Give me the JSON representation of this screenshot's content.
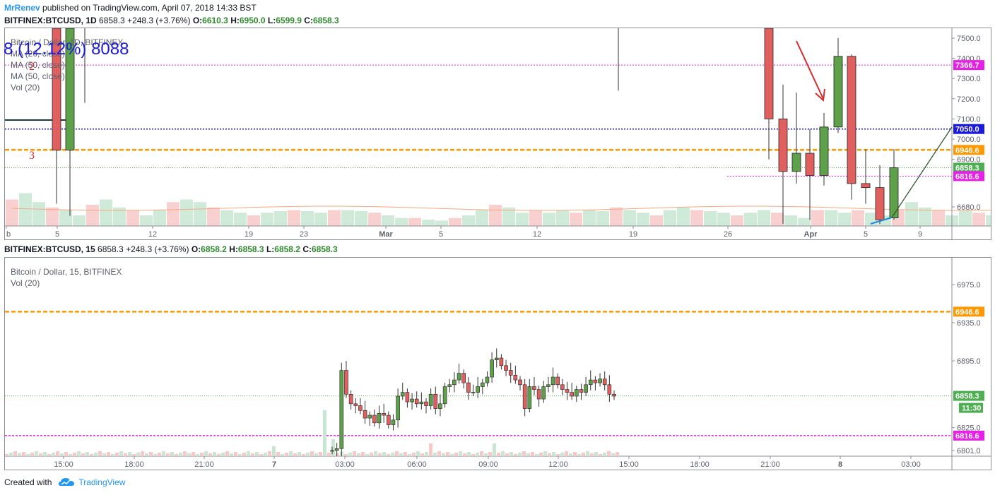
{
  "header": {
    "author": "MrRenev",
    "published": "published on TradingView.com, April 07, 2018 14:33 BST"
  },
  "top_chart": {
    "symbol_line": {
      "symbol": "BITFINEX:BTCUSD, 1D",
      "last": "6858.3",
      "change": "+248.3 (+3.76%)",
      "o": "O:",
      "ov": "6610.3",
      "h": "H:",
      "hv": "6950.0",
      "l": "L:",
      "lv": "6599.9",
      "c": "C:",
      "cv": "6858.3"
    },
    "legend": [
      "Bitcoin / Dollar, 1D, BITFINEX",
      "MA (20, close)",
      "MA (50, close)",
      "MA (50, close)",
      "Vol (20)"
    ],
    "overlay_text": "8 (12.12%) 8088",
    "annotation_2": "2",
    "annotation_3": "3"
  },
  "bottom_chart": {
    "symbol_line": {
      "symbol": "BITFINEX:BTCUSD, 15",
      "last": "6858.3",
      "change": "+248.3 (+3.76%)",
      "o": "O:",
      "ov": "6858.2",
      "h": "H:",
      "hv": "6858.3",
      "l": "L:",
      "lv": "6858.2",
      "c": "C:",
      "cv": "6858.3"
    },
    "legend": [
      "Bitcoin / Dollar, 15, BITFINEX",
      "Vol (20)"
    ]
  },
  "footer": {
    "created_with": "Created with",
    "brand": "TradingView"
  },
  "colors": {
    "up": "#6ba583",
    "up_fill": "#4caf50",
    "down": "#e06666",
    "orange": "#ff9800",
    "magenta": "#e91ee9",
    "blue": "#1a1adb",
    "green_line": "#4caf50",
    "axis": "#8a8e99"
  },
  "chart_data": [
    {
      "type": "candlestick",
      "title": "Bitcoin / Dollar, 1D, BITFINEX",
      "ylim": [
        6600,
        7550
      ],
      "y_ticks": [
        7500.0,
        7400.0,
        7300.0,
        7200.0,
        7100.0,
        7000.0,
        6900.0,
        6680.0
      ],
      "y_tick_labels": [
        "7500.0",
        "7400.0",
        "7300.0",
        "7200.0",
        "7100.0",
        "7000.0",
        "6900.0",
        "6680.0"
      ],
      "x_tick_labels": [
        "b",
        "5",
        "12",
        "19",
        "23",
        "Mar",
        "5",
        "12",
        "19",
        "26",
        "Apr",
        "5",
        "9"
      ],
      "price_labels": [
        {
          "value": 7366.7,
          "text": "7366.7",
          "color": "#e91ee9"
        },
        {
          "value": 7050.0,
          "text": "7050.0",
          "color": "#1a1adb"
        },
        {
          "value": 6946.6,
          "text": "6946.6",
          "color": "#ff9800"
        },
        {
          "value": 6858.3,
          "text": "6858.3",
          "color": "#4caf50"
        },
        {
          "value": 6816.6,
          "text": "6816.6",
          "color": "#e91ee9"
        }
      ],
      "candles": [
        {
          "date": "Feb 04",
          "o": 7600,
          "h": 7600,
          "l": 6680,
          "c": 6946,
          "dir": "down"
        },
        {
          "date": "Feb 05",
          "o": 6946,
          "h": 7600,
          "l": 6620,
          "c": 7600,
          "dir": "up"
        },
        {
          "date": "Feb 06",
          "o": 7300,
          "h": 7550,
          "l": 7180,
          "c": 7300,
          "dir": "down"
        },
        {
          "date": "Feb 18",
          "o": 7260,
          "h": 7550,
          "l": 7240,
          "c": 7260,
          "dir": "down"
        },
        {
          "date": "Mar 29",
          "o": 7550,
          "h": 7550,
          "l": 6900,
          "c": 7100,
          "dir": "down"
        },
        {
          "date": "Mar 30",
          "o": 7100,
          "h": 7270,
          "l": 6580,
          "c": 6840,
          "dir": "down"
        },
        {
          "date": "Mar 31",
          "o": 6840,
          "h": 7230,
          "l": 6780,
          "c": 6930,
          "dir": "up"
        },
        {
          "date": "Apr 01",
          "o": 6930,
          "h": 7050,
          "l": 6600,
          "c": 6820,
          "dir": "down"
        },
        {
          "date": "Apr 02",
          "o": 6820,
          "h": 7130,
          "l": 6770,
          "c": 7060,
          "dir": "up"
        },
        {
          "date": "Apr 03",
          "o": 7060,
          "h": 7500,
          "l": 7030,
          "c": 7410,
          "dir": "up"
        },
        {
          "date": "Apr 04",
          "o": 7410,
          "h": 7420,
          "l": 6700,
          "c": 6780,
          "dir": "down"
        },
        {
          "date": "Apr 05",
          "o": 6780,
          "h": 6950,
          "l": 6680,
          "c": 6760,
          "dir": "down"
        },
        {
          "date": "Apr 06",
          "o": 6760,
          "h": 6870,
          "l": 6580,
          "c": 6600,
          "dir": "down"
        },
        {
          "date": "Apr 07",
          "o": 6610,
          "h": 6950,
          "l": 6600,
          "c": 6858,
          "dir": "up"
        }
      ],
      "volume_ratio": [
        0.5,
        0.62,
        0.45,
        0.35,
        0.3,
        0.2,
        0.4,
        0.5,
        0.35,
        0.3,
        0.2,
        0.3,
        0.45,
        0.5,
        0.45,
        0.35,
        0.3,
        0.25,
        0.2,
        0.25,
        0.28,
        0.3,
        0.28,
        0.25,
        0.3,
        0.3,
        0.28,
        0.25,
        0.2,
        0.15,
        0.15,
        0.12,
        0.1,
        0.15,
        0.2,
        0.3,
        0.4,
        0.35,
        0.25,
        0.3,
        0.25,
        0.3,
        0.25,
        0.3,
        0.28,
        0.35,
        0.3,
        0.25,
        0.2,
        0.3,
        0.35,
        0.3,
        0.28,
        0.25,
        0.2,
        0.25,
        0.3,
        0.25,
        0.2,
        0.15,
        0.3,
        0.3,
        0.25,
        0.3,
        0.25,
        0.2,
        0.3,
        0.45,
        0.35,
        0.3,
        0.2,
        0.3,
        0.25,
        0.2,
        0.2,
        0.25,
        0.3,
        0.25,
        0.2,
        0.3
      ],
      "annotations": [
        "red arrow pointing down",
        "green trendline",
        "blue trendline",
        "black horizontal box line"
      ]
    },
    {
      "type": "candlestick",
      "title": "Bitcoin / Dollar, 15, BITFINEX",
      "ylim": [
        6795,
        6995
      ],
      "y_ticks": [
        6975.0,
        6935.0,
        6895.0,
        6825.0,
        6801.0
      ],
      "y_tick_labels": [
        "6975.0",
        "6935.0",
        "6895.0",
        "6825.0",
        "6801.0"
      ],
      "x_tick_labels": [
        "15:00",
        "18:00",
        "21:00",
        "7",
        "03:00",
        "06:00",
        "09:00",
        "12:00",
        "15:00",
        "18:00",
        "21:00",
        "8",
        "03:00"
      ],
      "price_labels": [
        {
          "value": 6946.6,
          "text": "6946.6",
          "color": "#ff9800"
        },
        {
          "value": 6858.3,
          "text": "6858.3",
          "color": "#4caf50"
        },
        {
          "value": 6816.6,
          "text": "6816.6",
          "color": "#e91ee9"
        }
      ],
      "time_label": "11:30",
      "candles_note": "intraday 15m candles from ~02:00 to 14:30 on Apr 7",
      "closes": [
        6801,
        6803,
        6885,
        6860,
        6850,
        6848,
        6843,
        6835,
        6838,
        6830,
        6840,
        6838,
        6828,
        6833,
        6858,
        6862,
        6852,
        6855,
        6850,
        6852,
        6848,
        6860,
        6845,
        6850,
        6868,
        6870,
        6875,
        6882,
        6872,
        6862,
        6862,
        6868,
        6872,
        6878,
        6896,
        6898,
        6890,
        6885,
        6880,
        6875,
        6870,
        6845,
        6868,
        6865,
        6855,
        6868,
        6870,
        6878,
        6870,
        6865,
        6862,
        6858,
        6865,
        6862,
        6870,
        6875,
        6872,
        6876,
        6870,
        6860,
        6858
      ]
    }
  ]
}
